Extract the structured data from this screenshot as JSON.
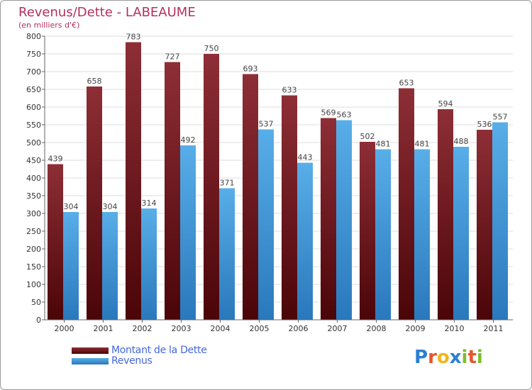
{
  "title": "Revenus/Dette - LABEAUME",
  "subtitle": "(en milliers d'€)",
  "logo": {
    "text": "Proxiti",
    "letters": [
      {
        "ch": "P",
        "color": "#2b7fd4"
      },
      {
        "ch": "r",
        "color": "#e8562a"
      },
      {
        "ch": "o",
        "color": "#f2b51d"
      },
      {
        "ch": "x",
        "color": "#2b7fd4"
      },
      {
        "ch": "i",
        "color": "#7bbf2a"
      },
      {
        "ch": "t",
        "color": "#e8562a"
      },
      {
        "ch": "i",
        "color": "#7bbf2a"
      }
    ]
  },
  "colors": {
    "dette": "#7a1a22",
    "revenus": "#3d96dc",
    "grid": "#dddddd",
    "axis": "#666666"
  },
  "chart_data": {
    "type": "bar",
    "title": "Revenus/Dette - LABEAUME",
    "subtitle": "(en milliers d'€)",
    "categories": [
      "2000",
      "2001",
      "2002",
      "2003",
      "2004",
      "2005",
      "2006",
      "2007",
      "2008",
      "2009",
      "2010",
      "2011"
    ],
    "series": [
      {
        "name": "Montant de la Dette",
        "values": [
          439,
          658,
          783,
          727,
          750,
          693,
          633,
          569,
          502,
          653,
          594,
          536
        ]
      },
      {
        "name": "Revenus",
        "values": [
          304,
          304,
          314,
          492,
          371,
          537,
          443,
          563,
          481,
          481,
          488,
          557
        ]
      }
    ],
    "ylim": [
      0,
      800
    ],
    "yticks": [
      0,
      50,
      100,
      150,
      200,
      250,
      300,
      350,
      400,
      450,
      500,
      550,
      600,
      650,
      700,
      750,
      800
    ],
    "grid": true,
    "legend_position": "bottom-left"
  }
}
